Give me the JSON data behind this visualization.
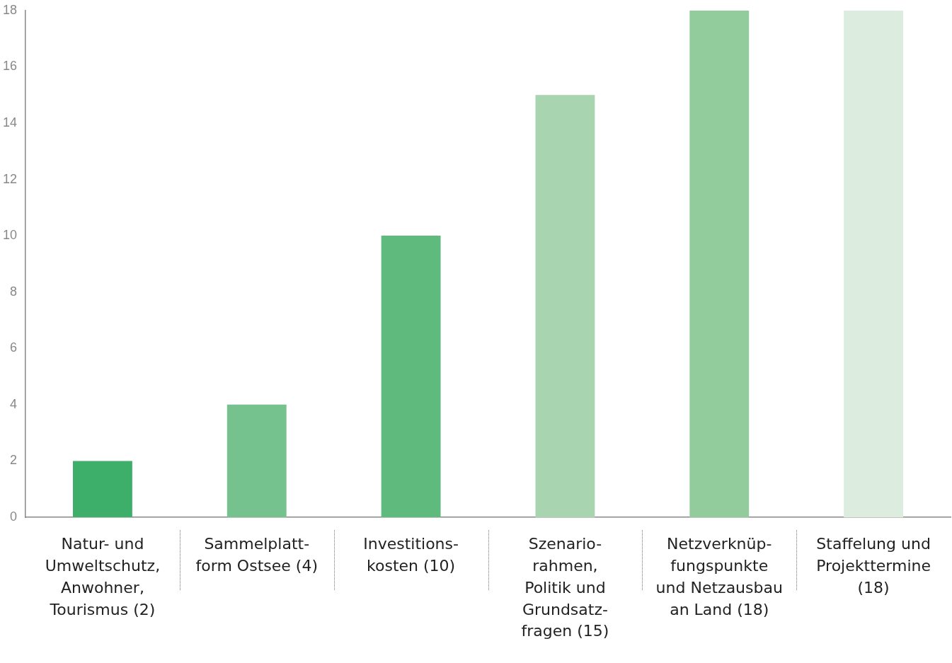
{
  "chart_data": {
    "type": "bar",
    "categories": [
      "Natur- und\nUmweltschutz,\nAnwohner,\nTourismus (2)",
      "Sammelplatt-\nform Ostsee (4)",
      "Investitions-\nkosten (10)",
      "Szenario-\nrahmen,\nPolitik und\nGrundsatz-\nfragen (15)",
      "Netzverknüp-\nfungspunkte\nund Netzausbau\nan Land (18)",
      "Staffelung und\nProjekttermine\n(18)"
    ],
    "values": [
      2,
      4,
      10,
      15,
      18,
      18
    ],
    "colors": [
      "#3daf6a",
      "#76c28e",
      "#5fba7d",
      "#a8d5b0",
      "#93cc9c",
      "#dcede0"
    ],
    "ylim": [
      0,
      18
    ],
    "yticks": [
      0,
      2,
      4,
      6,
      8,
      10,
      12,
      14,
      16,
      18
    ],
    "grid": false,
    "legend": false
  }
}
